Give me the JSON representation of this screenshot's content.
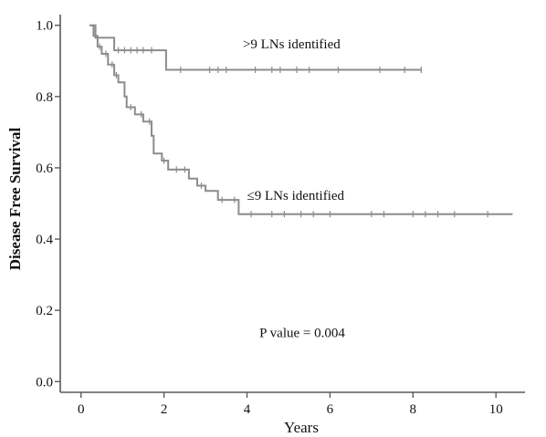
{
  "chart_data": {
    "type": "line",
    "subtype": "kaplan-meier-step",
    "xlabel": "Years",
    "ylabel": "Disease Free Survival",
    "xlim": [
      -0.5,
      10.7
    ],
    "ylim": [
      -0.03,
      1.03
    ],
    "xticks": [
      0,
      2,
      4,
      6,
      8,
      10
    ],
    "yticks": [
      0.0,
      0.2,
      0.4,
      0.6,
      0.8,
      1.0
    ],
    "ytick_labels": [
      "0.0",
      "0.2",
      "0.4",
      "0.6",
      "0.8",
      "1.0"
    ],
    "grid": false,
    "line_color": "#8c8c8c",
    "series": [
      {
        "label": ">9 LNs identified",
        "steps": [
          [
            0.25,
            1.0
          ],
          [
            0.35,
            0.965
          ],
          [
            0.8,
            0.93
          ],
          [
            2.05,
            0.875
          ],
          [
            8.2,
            0.875
          ]
        ],
        "censors": [
          0.9,
          1.05,
          1.2,
          1.35,
          1.5,
          1.7,
          2.4,
          3.1,
          3.3,
          3.5,
          4.2,
          4.6,
          4.8,
          5.2,
          5.5,
          6.2,
          7.2,
          7.8,
          8.2
        ]
      },
      {
        "label": "≤9 LNs identified",
        "steps": [
          [
            0.2,
            1.0
          ],
          [
            0.3,
            0.97
          ],
          [
            0.4,
            0.94
          ],
          [
            0.5,
            0.92
          ],
          [
            0.65,
            0.89
          ],
          [
            0.8,
            0.86
          ],
          [
            0.9,
            0.84
          ],
          [
            1.05,
            0.8
          ],
          [
            1.1,
            0.77
          ],
          [
            1.3,
            0.75
          ],
          [
            1.5,
            0.73
          ],
          [
            1.7,
            0.69
          ],
          [
            1.75,
            0.64
          ],
          [
            1.95,
            0.62
          ],
          [
            2.1,
            0.595
          ],
          [
            2.6,
            0.57
          ],
          [
            2.8,
            0.55
          ],
          [
            3.0,
            0.535
          ],
          [
            3.3,
            0.51
          ],
          [
            3.8,
            0.47
          ],
          [
            10.4,
            0.47
          ]
        ],
        "censors": [
          0.45,
          0.6,
          0.75,
          0.85,
          1.2,
          1.45,
          1.65,
          2.0,
          2.3,
          2.5,
          2.9,
          3.4,
          3.7,
          4.1,
          4.6,
          4.9,
          5.3,
          5.6,
          6.0,
          7.0,
          7.3,
          8.0,
          8.3,
          8.6,
          9.0,
          9.8
        ]
      }
    ],
    "annotations": [
      {
        "text": ">9 LNs identified",
        "x": 3.9,
        "y": 0.935
      },
      {
        "text": "≤9 LNs identified",
        "x": 4.0,
        "y": 0.51
      },
      {
        "text": "P value =  0.004",
        "x": 4.3,
        "y": 0.125
      }
    ]
  }
}
